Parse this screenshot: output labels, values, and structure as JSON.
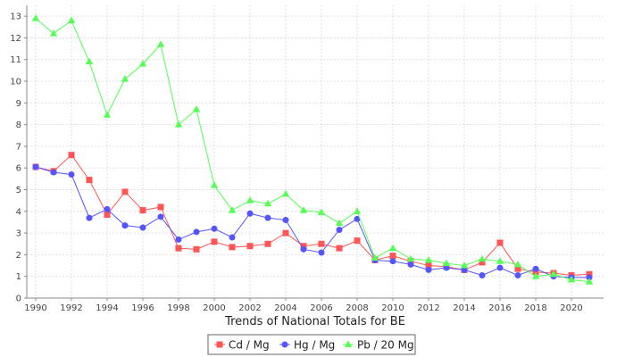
{
  "chart_data": {
    "type": "line",
    "xlabel": "Trends of National Totals for BE",
    "ylabel": "",
    "xlim": [
      1989.5,
      2021.8
    ],
    "ylim": [
      0,
      13.5
    ],
    "x_ticks": [
      1990,
      1992,
      1994,
      1996,
      1998,
      2000,
      2002,
      2004,
      2006,
      2008,
      2010,
      2012,
      2014,
      2016,
      2018,
      2020
    ],
    "y_ticks": [
      0,
      1,
      2,
      3,
      4,
      5,
      6,
      7,
      8,
      9,
      10,
      11,
      12,
      13
    ],
    "grid": true,
    "legend_position": "bottom-center",
    "x": [
      1990,
      1991,
      1992,
      1993,
      1994,
      1995,
      1996,
      1997,
      1998,
      1999,
      2000,
      2001,
      2002,
      2003,
      2004,
      2005,
      2006,
      2007,
      2008,
      2009,
      2010,
      2011,
      2012,
      2013,
      2014,
      2015,
      2016,
      2017,
      2018,
      2019,
      2020,
      2021
    ],
    "series": [
      {
        "name": "Cd / Mg",
        "color": "#ff5555",
        "marker": "square",
        "values": [
          6.05,
          5.85,
          6.6,
          5.45,
          3.85,
          4.9,
          4.05,
          4.2,
          2.3,
          2.25,
          2.6,
          2.35,
          2.4,
          2.5,
          3.0,
          2.4,
          2.5,
          2.3,
          2.65,
          1.75,
          1.95,
          1.7,
          1.5,
          1.45,
          1.3,
          1.65,
          2.55,
          1.35,
          1.2,
          1.15,
          1.05,
          1.1
        ]
      },
      {
        "name": "Hg / Mg",
        "color": "#5555ff",
        "marker": "circle",
        "values": [
          6.05,
          5.8,
          5.7,
          3.7,
          4.1,
          3.35,
          3.25,
          3.75,
          2.7,
          3.05,
          3.2,
          2.8,
          3.9,
          3.7,
          3.6,
          2.25,
          2.1,
          3.15,
          3.65,
          1.75,
          1.7,
          1.55,
          1.3,
          1.4,
          1.3,
          1.05,
          1.4,
          1.05,
          1.35,
          1.0,
          0.95,
          0.95
        ]
      },
      {
        "name": "Pb / 20 Mg",
        "color": "#55ff55",
        "marker": "triangle",
        "values": [
          12.9,
          12.2,
          12.8,
          10.9,
          8.45,
          10.1,
          10.8,
          11.7,
          8.0,
          8.7,
          5.2,
          4.05,
          4.5,
          4.35,
          4.8,
          4.05,
          3.95,
          3.45,
          4.0,
          1.85,
          2.3,
          1.8,
          1.75,
          1.6,
          1.5,
          1.8,
          1.7,
          1.55,
          1.0,
          1.1,
          0.85,
          0.75
        ]
      }
    ]
  }
}
